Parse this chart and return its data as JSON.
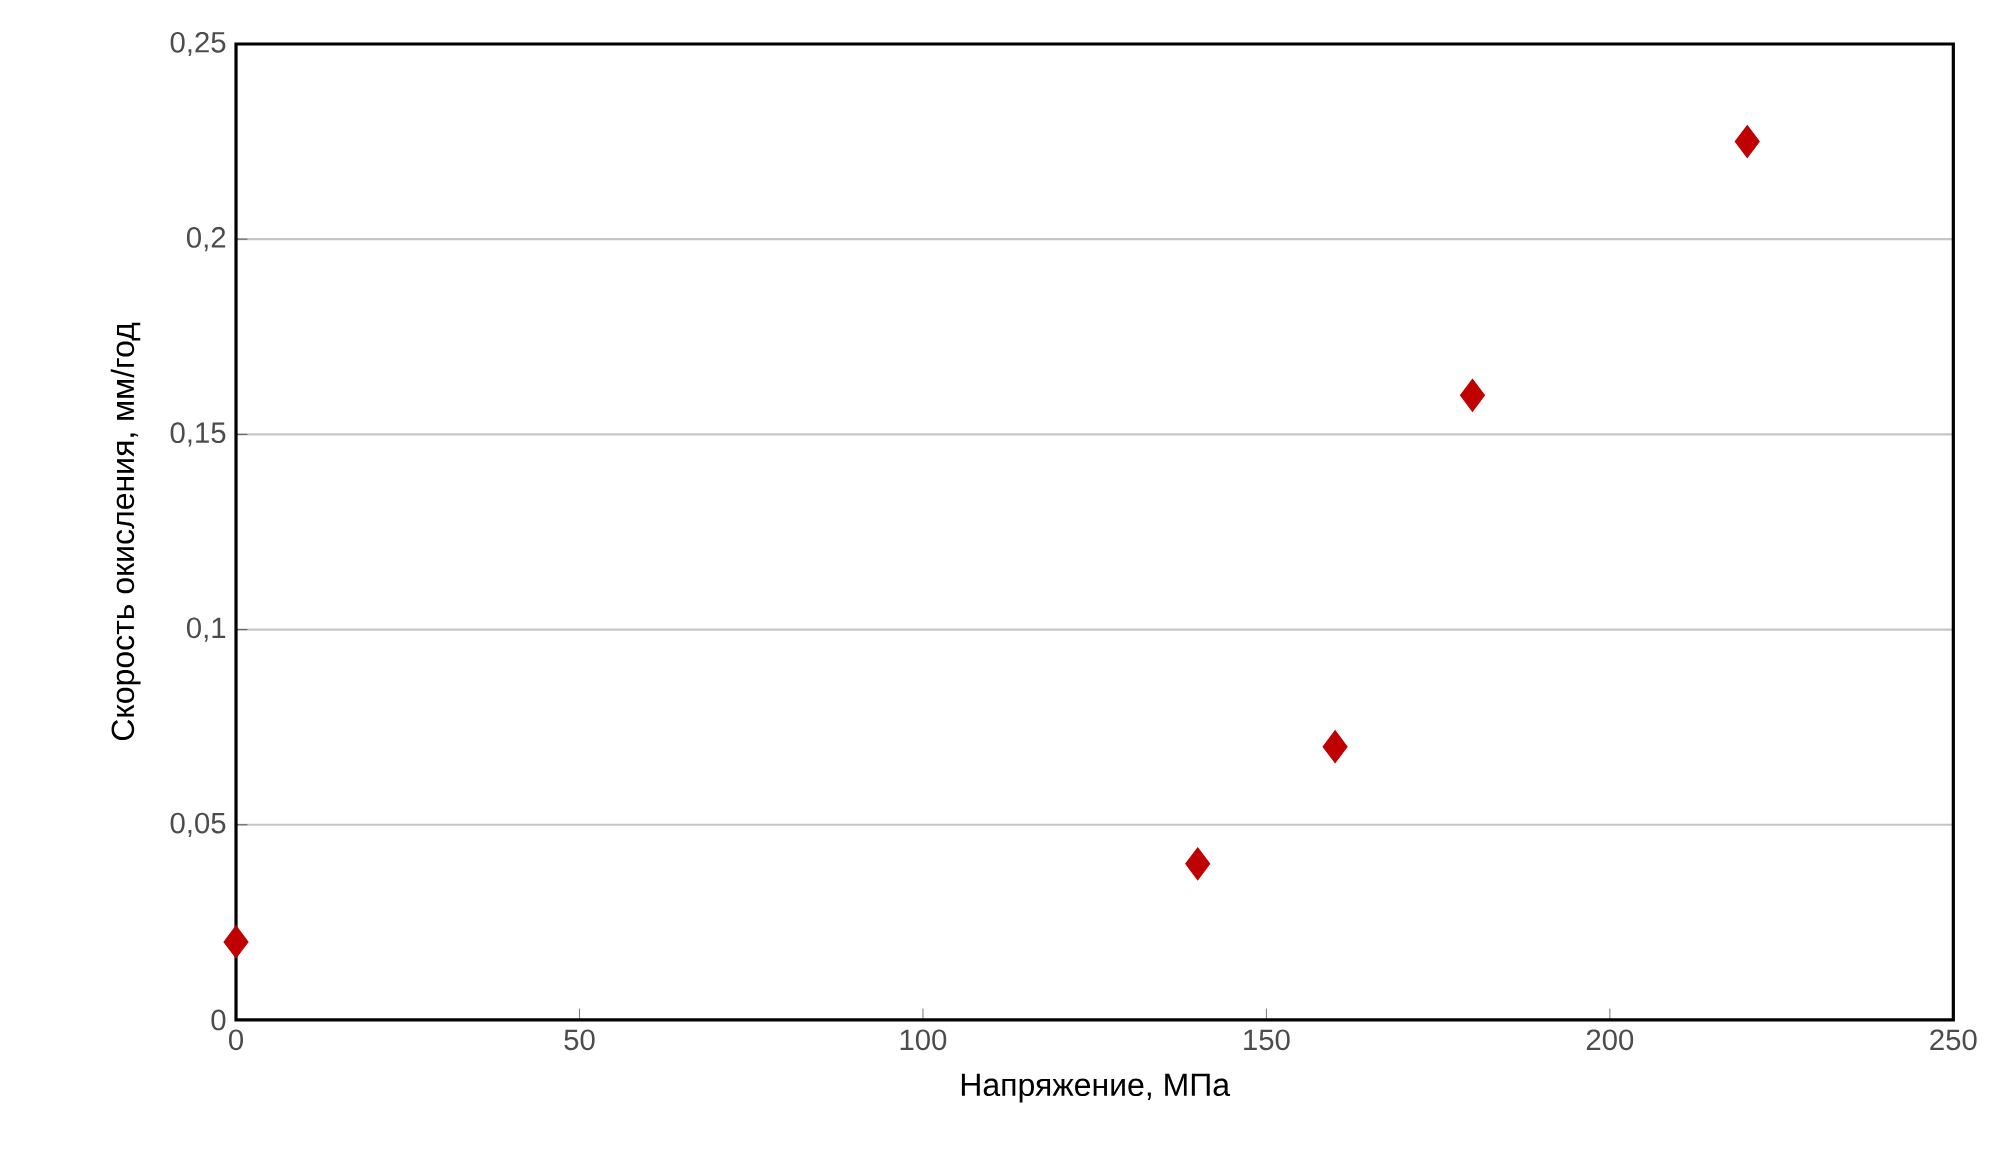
{
  "chart_data": {
    "type": "scatter",
    "xlabel": "Напряжение, МПа",
    "ylabel": "Скорость окисления, мм/год",
    "x": [
      0,
      140,
      160,
      180,
      220
    ],
    "series": [
      {
        "color": "#c00000",
        "values": [
          0.02,
          0.04,
          0.07,
          0.16,
          0.225
        ]
      }
    ],
    "xlim": [
      0,
      250
    ],
    "xticks": [
      0,
      50,
      100,
      150,
      200,
      250
    ],
    "ylim": [
      0,
      0.25
    ],
    "yticks": [
      0,
      {
        "value": 0.05,
        "label": "0,05"
      },
      {
        "value": 0.1,
        "label": "0,1"
      },
      {
        "value": 0.15,
        "label": "0,15"
      },
      {
        "value": 0.2,
        "label": "0,2"
      },
      {
        "value": 0.25,
        "label": "0,25"
      }
    ],
    "grid": "y",
    "marker": "diamond",
    "legend": false
  }
}
